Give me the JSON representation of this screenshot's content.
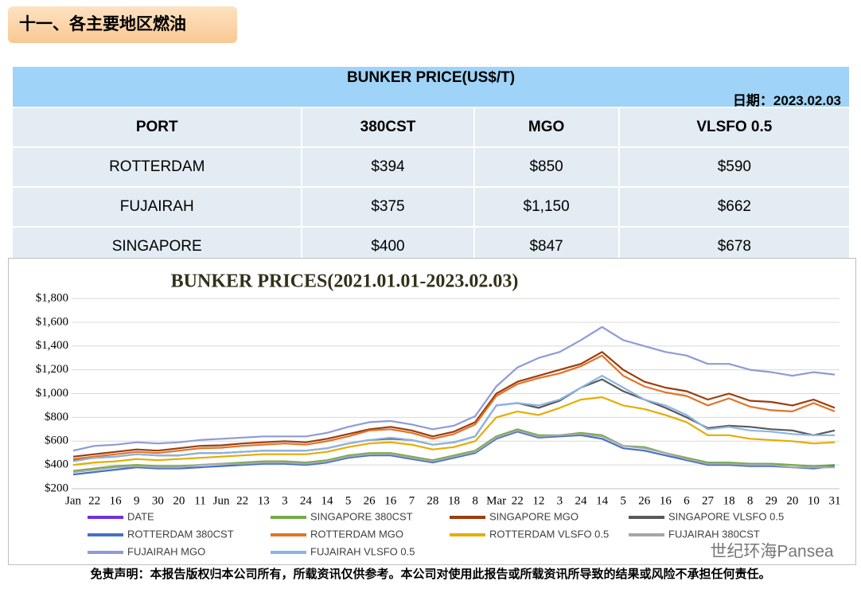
{
  "header": {
    "title": "十一、各主要地区燃油"
  },
  "table": {
    "title": "BUNKER PRICE(US$/T)",
    "date": "日期：2023.02.03",
    "columns": [
      "PORT",
      "380CST",
      "MGO",
      "VLSFO 0.5"
    ],
    "rows": [
      [
        "ROTTERDAM",
        "$394",
        "$850",
        "$590"
      ],
      [
        "FUJAIRAH",
        "$375",
        "$1,150",
        "$662"
      ],
      [
        "SINGAPORE",
        "$400",
        "$847",
        "$678"
      ]
    ]
  },
  "chart_data": {
    "type": "line",
    "title": "BUNKER PRICES(2021.01.01-2023.02.03)",
    "categories": [
      "Jan",
      "22",
      "16",
      "9",
      "30",
      "20",
      "11",
      "Jun",
      "22",
      "13",
      "3",
      "24",
      "14",
      "5",
      "26",
      "16",
      "7",
      "28",
      "18",
      "8",
      "Mar",
      "22",
      "12",
      "3",
      "24",
      "14",
      "5",
      "26",
      "16",
      "6",
      "27",
      "18",
      "8",
      "29",
      "20",
      "10",
      "31"
    ],
    "ylim": [
      200,
      1800
    ],
    "yticks": [
      {
        "value": 200,
        "label": "$200"
      },
      {
        "value": 400,
        "label": "$400"
      },
      {
        "value": 600,
        "label": "$600"
      },
      {
        "value": 800,
        "label": "$800"
      },
      {
        "value": 1000,
        "label": "$1,000"
      },
      {
        "value": 1200,
        "label": "$1,200"
      },
      {
        "value": 1400,
        "label": "$1,400"
      },
      {
        "value": 1600,
        "label": "$1,600"
      },
      {
        "value": 1800,
        "label": "$1,800"
      }
    ],
    "grid": true,
    "series": [
      {
        "name": "DATE",
        "color": "#7030e0",
        "values": [
          null,
          null,
          null,
          null,
          null,
          null,
          null,
          null,
          null,
          null,
          null,
          null,
          null,
          null,
          null,
          null,
          null,
          null,
          null,
          null,
          null,
          null,
          null,
          null,
          null,
          null,
          null,
          null,
          null,
          null,
          null,
          null,
          null,
          null,
          null,
          null,
          null
        ]
      },
      {
        "name": "SINGAPORE 380CST",
        "color": "#70ad47",
        "values": [
          350,
          370,
          390,
          400,
          390,
          390,
          400,
          410,
          420,
          430,
          430,
          420,
          440,
          480,
          500,
          500,
          470,
          440,
          480,
          520,
          640,
          700,
          650,
          650,
          670,
          650,
          560,
          550,
          500,
          460,
          420,
          420,
          410,
          410,
          400,
          390,
          400
        ]
      },
      {
        "name": "SINGAPORE MGO",
        "color": "#9c3d0c",
        "values": [
          470,
          490,
          510,
          530,
          520,
          540,
          560,
          565,
          580,
          590,
          600,
          590,
          620,
          660,
          700,
          720,
          690,
          640,
          680,
          760,
          1000,
          1100,
          1150,
          1200,
          1250,
          1350,
          1200,
          1100,
          1050,
          1020,
          950,
          1000,
          940,
          930,
          900,
          950,
          880
        ]
      },
      {
        "name": "SINGAPORE VLSFO 0.5",
        "color": "#595959",
        "values": [
          440,
          460,
          470,
          490,
          480,
          480,
          500,
          500,
          510,
          520,
          520,
          520,
          540,
          580,
          610,
          620,
          610,
          570,
          590,
          640,
          900,
          920,
          880,
          940,
          1050,
          1120,
          1020,
          950,
          880,
          800,
          710,
          730,
          720,
          700,
          690,
          650,
          690
        ]
      },
      {
        "name": "ROTTERDAM 380CST",
        "color": "#4472c4",
        "values": [
          320,
          340,
          360,
          380,
          370,
          370,
          380,
          390,
          400,
          410,
          410,
          400,
          420,
          460,
          480,
          480,
          450,
          420,
          460,
          500,
          620,
          680,
          630,
          640,
          650,
          620,
          540,
          520,
          480,
          440,
          400,
          400,
          390,
          390,
          380,
          370,
          390
        ]
      },
      {
        "name": "ROTTERDAM MGO",
        "color": "#e0742a",
        "values": [
          450,
          470,
          490,
          510,
          500,
          520,
          540,
          545,
          560,
          570,
          580,
          570,
          600,
          640,
          690,
          700,
          670,
          620,
          660,
          740,
          980,
          1080,
          1130,
          1170,
          1230,
          1320,
          1150,
          1060,
          1010,
          980,
          900,
          960,
          890,
          860,
          850,
          920,
          850
        ]
      },
      {
        "name": "ROTTERDAM VLSFO 0.5",
        "color": "#e6ac00",
        "values": [
          400,
          420,
          430,
          450,
          440,
          450,
          460,
          470,
          480,
          490,
          490,
          490,
          510,
          550,
          580,
          590,
          570,
          530,
          550,
          600,
          800,
          850,
          820,
          880,
          950,
          970,
          900,
          870,
          820,
          760,
          650,
          650,
          620,
          610,
          600,
          580,
          590
        ]
      },
      {
        "name": "FUJAIRAH  380CST",
        "color": "#a6a6a6",
        "values": [
          340,
          360,
          380,
          390,
          380,
          380,
          400,
          410,
          410,
          420,
          420,
          410,
          430,
          470,
          490,
          490,
          460,
          430,
          470,
          510,
          630,
          690,
          640,
          650,
          660,
          640,
          560,
          540,
          500,
          450,
          410,
          410,
          400,
          400,
          380,
          380,
          380
        ]
      },
      {
        "name": "FUJAIRAH MGO",
        "color": "#8e9bd6",
        "values": [
          520,
          560,
          570,
          590,
          580,
          590,
          610,
          620,
          630,
          640,
          640,
          640,
          670,
          720,
          760,
          770,
          740,
          700,
          730,
          810,
          1060,
          1220,
          1300,
          1350,
          1450,
          1560,
          1450,
          1400,
          1350,
          1320,
          1250,
          1250,
          1200,
          1180,
          1150,
          1180,
          1160
        ]
      },
      {
        "name": "FUJAIRAH VLSFO 0.5",
        "color": "#8db4e2",
        "values": [
          430,
          460,
          470,
          490,
          480,
          480,
          500,
          500,
          510,
          520,
          520,
          520,
          540,
          580,
          610,
          630,
          610,
          570,
          590,
          640,
          900,
          920,
          900,
          950,
          1050,
          1150,
          1050,
          950,
          900,
          820,
          700,
          720,
          690,
          680,
          660,
          650,
          650
        ]
      }
    ]
  },
  "watermark": "世纪环海Pansea",
  "disclaimer": "免责声明：本报告版权归本公司所有，所载资讯仅供参考。本公司对使用此报告或所载资讯所导致的结果或风险不承担任何责任。"
}
